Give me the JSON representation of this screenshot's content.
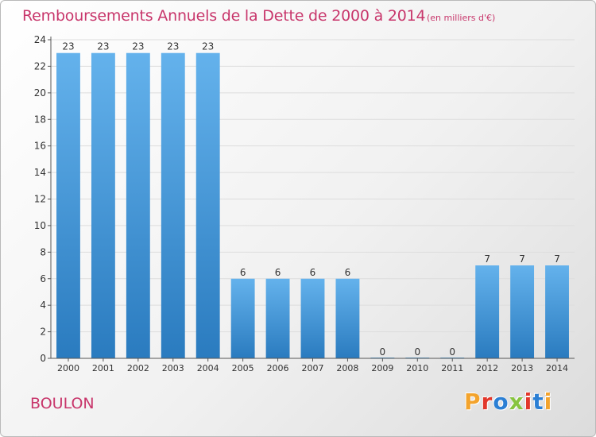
{
  "header": {
    "title": "Remboursements Annuels de la Dette de 2000 à 2014",
    "subtitle": "(en milliers d'€)"
  },
  "footer": {
    "commune": "BOULON",
    "logo": "Proxiti",
    "logo_colors": [
      "#f3a32c",
      "#e2372b",
      "#2b7fd4",
      "#88c43f",
      "#e2372b",
      "#2b7fd4",
      "#f3a32c"
    ]
  },
  "colors": {
    "bar_top": "#64b2ec",
    "bar_bottom": "#2a7bbf",
    "grid": "#dddddd",
    "title": "#c8366b"
  },
  "chart_data": {
    "type": "bar",
    "title": "Remboursements Annuels de la Dette de 2000 à 2014",
    "xlabel": "",
    "ylabel": "",
    "categories": [
      "2000",
      "2001",
      "2002",
      "2003",
      "2004",
      "2005",
      "2006",
      "2007",
      "2008",
      "2009",
      "2010",
      "2011",
      "2012",
      "2013",
      "2014"
    ],
    "values": [
      23,
      23,
      23,
      23,
      23,
      6,
      6,
      6,
      6,
      0,
      0,
      0,
      7,
      7,
      7
    ],
    "ylim": [
      0,
      24
    ],
    "yticks": [
      0,
      2,
      4,
      6,
      8,
      10,
      12,
      14,
      16,
      18,
      20,
      22,
      24
    ],
    "grid": true
  }
}
